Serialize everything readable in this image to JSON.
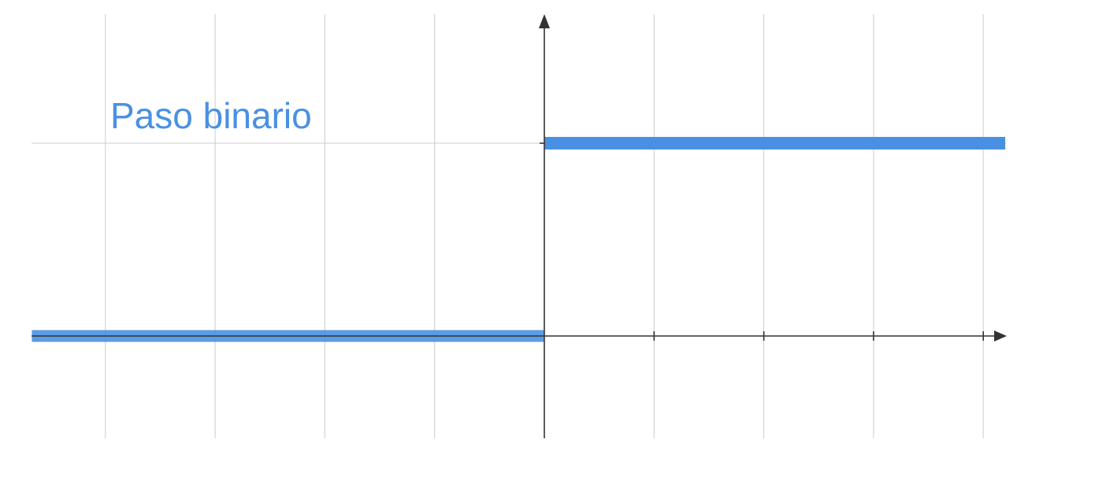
{
  "chart_data": {
    "type": "line",
    "title": "Paso binario",
    "xlabel": "",
    "ylabel": "",
    "x_ticks": [
      1,
      2,
      3,
      4
    ],
    "y_ticks": [
      1
    ],
    "xlim": [
      -4.67,
      4.2
    ],
    "ylim": [
      -0.53,
      1.68
    ],
    "grid": true,
    "series": [
      {
        "color": "#4a90e2",
        "segments": [
          {
            "x": [
              -4.67,
              0
            ],
            "y": [
              0,
              0
            ]
          },
          {
            "x": [
              0,
              4.2
            ],
            "y": [
              1,
              1
            ]
          }
        ]
      }
    ]
  },
  "colors": {
    "series": "#4a90e2",
    "axis": "#333333",
    "grid": "#cccccc"
  }
}
